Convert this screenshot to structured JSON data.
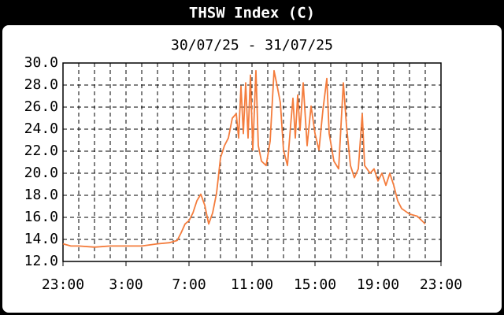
{
  "chart_data": {
    "type": "line",
    "title": "THSW Index (C)",
    "subtitle": "30/07/25 - 31/07/25",
    "xlim": [
      0,
      24
    ],
    "xticks": [
      {
        "value": 0,
        "label": "23:00"
      },
      {
        "value": 4,
        "label": "3:00"
      },
      {
        "value": 8,
        "label": "7:00"
      },
      {
        "value": 12,
        "label": "11:00"
      },
      {
        "value": 16,
        "label": "15:00"
      },
      {
        "value": 20,
        "label": "19:00"
      },
      {
        "value": 24,
        "label": "23:00"
      }
    ],
    "ylim": [
      12,
      30
    ],
    "yticks": [
      {
        "value": 12,
        "label": "12.0"
      },
      {
        "value": 14,
        "label": "14.0"
      },
      {
        "value": 16,
        "label": "16.0"
      },
      {
        "value": 18,
        "label": "18.0"
      },
      {
        "value": 20,
        "label": "20.0"
      },
      {
        "value": 22,
        "label": "22.0"
      },
      {
        "value": 24,
        "label": "24.0"
      },
      {
        "value": 26,
        "label": "26.0"
      },
      {
        "value": 28,
        "label": "28.0"
      },
      {
        "value": 30,
        "label": "30.0"
      }
    ],
    "grid": true,
    "x_grid_step": 1,
    "series": [
      {
        "name": "THSW Index",
        "color": "#f47c3c",
        "x": [
          0,
          0.5,
          1,
          2,
          3,
          4,
          5,
          5.5,
          6,
          6.75,
          7.25,
          7.5,
          7.75,
          8,
          8.25,
          8.5,
          8.75,
          9,
          9.25,
          9.5,
          9.75,
          10,
          10.25,
          10.5,
          10.75,
          11,
          11.15,
          11.3,
          11.45,
          11.6,
          11.75,
          11.9,
          12.05,
          12.25,
          12.4,
          12.6,
          12.9,
          13.15,
          13.4,
          13.6,
          13.8,
          14,
          14.25,
          14.45,
          14.6,
          14.75,
          14.9,
          15.05,
          15.25,
          15.5,
          15.75,
          16,
          16.25,
          16.5,
          16.75,
          16.9,
          17.2,
          17.5,
          17.8,
          18,
          18.25,
          18.5,
          18.75,
          19,
          19.15,
          19.5,
          19.75,
          20,
          20.25,
          20.5,
          20.75,
          21,
          21.25,
          21.5,
          22,
          22.5,
          23
        ],
        "values": [
          13.6,
          13.4,
          13.4,
          13.3,
          13.4,
          13.4,
          13.4,
          13.5,
          13.6,
          13.7,
          13.9,
          14.6,
          15.4,
          15.7,
          16.4,
          17.5,
          18.1,
          17.1,
          15.4,
          16.4,
          18.2,
          21.4,
          22.5,
          23.2,
          25.0,
          25.4,
          23.2,
          27.9,
          23.6,
          28.2,
          23.2,
          28.9,
          22.1,
          29.3,
          22.5,
          21.1,
          20.7,
          22.9,
          29.3,
          27.9,
          26.4,
          22.1,
          20.7,
          24.3,
          26.8,
          23.2,
          27.1,
          23.9,
          28.2,
          22.5,
          26.1,
          23.6,
          22.1,
          25.7,
          28.6,
          23.6,
          21.1,
          20.4,
          28.2,
          24.3,
          20.7,
          19.6,
          20.4,
          25.4,
          20.7,
          20.0,
          20.4,
          19.3,
          20.0,
          18.9,
          20.0,
          18.9,
          17.5,
          16.8,
          16.3,
          16.1,
          15.4
        ]
      }
    ]
  }
}
